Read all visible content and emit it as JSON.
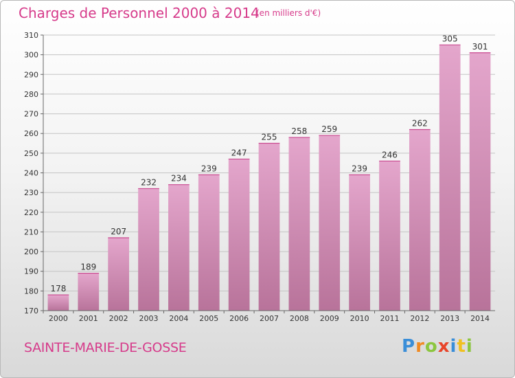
{
  "header": {
    "title": "Charges de Personnel 2000 à 2014",
    "subtitle": "(en milliers d'€)"
  },
  "footer": {
    "place": "SAINTE-MARIE-DE-GOSSE",
    "logo": "Proxiti"
  },
  "colors": {
    "accent": "#d63a8a",
    "bar_top": "#e4a6cc",
    "bar_bottom": "#b8739a"
  },
  "chart_data": {
    "type": "bar",
    "categories": [
      "2000",
      "2001",
      "2002",
      "2003",
      "2004",
      "2005",
      "2006",
      "2007",
      "2008",
      "2009",
      "2010",
      "2011",
      "2012",
      "2013",
      "2014"
    ],
    "values": [
      178,
      189,
      207,
      232,
      234,
      239,
      247,
      255,
      258,
      259,
      239,
      246,
      262,
      305,
      301
    ],
    "ylim": [
      170,
      310
    ],
    "yticks": [
      170,
      180,
      190,
      200,
      210,
      220,
      230,
      240,
      250,
      260,
      270,
      280,
      290,
      300,
      310
    ],
    "grid": true
  }
}
